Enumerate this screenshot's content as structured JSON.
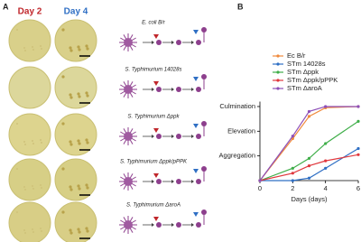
{
  "panel_a": {
    "label": "A",
    "columns": [
      "Day 2",
      "Day 4"
    ],
    "strains": [
      "E. coli B/r",
      "S. Typhimurium 14028s",
      "S. Typhimurium Δppk",
      "S. Typhimurium Δppk/pPPK",
      "S. Typhimurium ΔaroA"
    ]
  },
  "chart_data": {
    "type": "line",
    "label": "B",
    "xlabel": "Days (days)",
    "x": [
      0,
      2,
      3,
      4,
      6
    ],
    "series": [
      {
        "name": "Ec B/r",
        "color": "#f08a3c",
        "values": [
          0,
          1.7,
          2.6,
          2.95,
          3
        ]
      },
      {
        "name": "STm 14028s",
        "color": "#2f6fc4",
        "values": [
          0,
          0,
          0.1,
          0.5,
          1.3
        ]
      },
      {
        "name": "STm Δppk",
        "color": "#3fae49",
        "values": [
          0,
          0.5,
          0.9,
          1.5,
          2.4
        ]
      },
      {
        "name": "STm Δppk/pPPK",
        "color": "#e0383e",
        "values": [
          0,
          0.3,
          0.6,
          0.8,
          1.05
        ]
      },
      {
        "name": "STm ΔaroA",
        "color": "#8d4fb8",
        "values": [
          0,
          1.8,
          2.8,
          3,
          3
        ]
      }
    ],
    "xlim": [
      0,
      6
    ],
    "xticks": [
      0,
      2,
      4,
      6
    ],
    "ylim": [
      0,
      3.2
    ],
    "yticks": [
      {
        "value": 1,
        "label": "Aggregation"
      },
      {
        "value": 2,
        "label": "Elevation"
      },
      {
        "value": 3,
        "label": "Culmination"
      }
    ]
  }
}
